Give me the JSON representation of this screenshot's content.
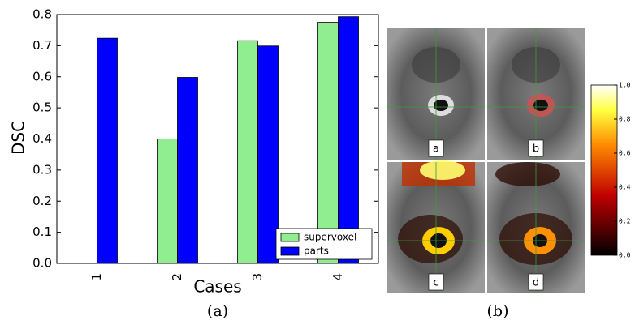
{
  "chart_data": {
    "type": "bar",
    "x_label": "Cases",
    "y_label": "DSC",
    "caption": "(a)",
    "categories": [
      "1",
      "2",
      "3",
      "4"
    ],
    "series": [
      {
        "name": "supervoxel",
        "color": "#90ee90",
        "values": [
          0,
          0.4,
          0.716,
          0.775
        ]
      },
      {
        "name": "parts",
        "color": "#0000ff",
        "values": [
          0.724,
          0.598,
          0.699,
          0.793
        ]
      }
    ],
    "ylim": [
      0,
      0.8
    ],
    "yticks": [
      {
        "value": 0,
        "label": "0.0"
      },
      0.1,
      0.2,
      0.3,
      0.4,
      0.5,
      0.6,
      0.7,
      0.8
    ],
    "legend": "lower right"
  },
  "panel_b": {
    "caption": "(b)",
    "labels": [
      "a",
      "b",
      "c",
      "d"
    ],
    "colorbar": {
      "lim": [
        0,
        1
      ],
      "ticks": [
        {
          "value": 0,
          "label": "0.0"
        },
        0.2,
        0.4,
        0.6,
        0.8,
        {
          "value": 1,
          "label": "1.0"
        }
      ]
    }
  }
}
